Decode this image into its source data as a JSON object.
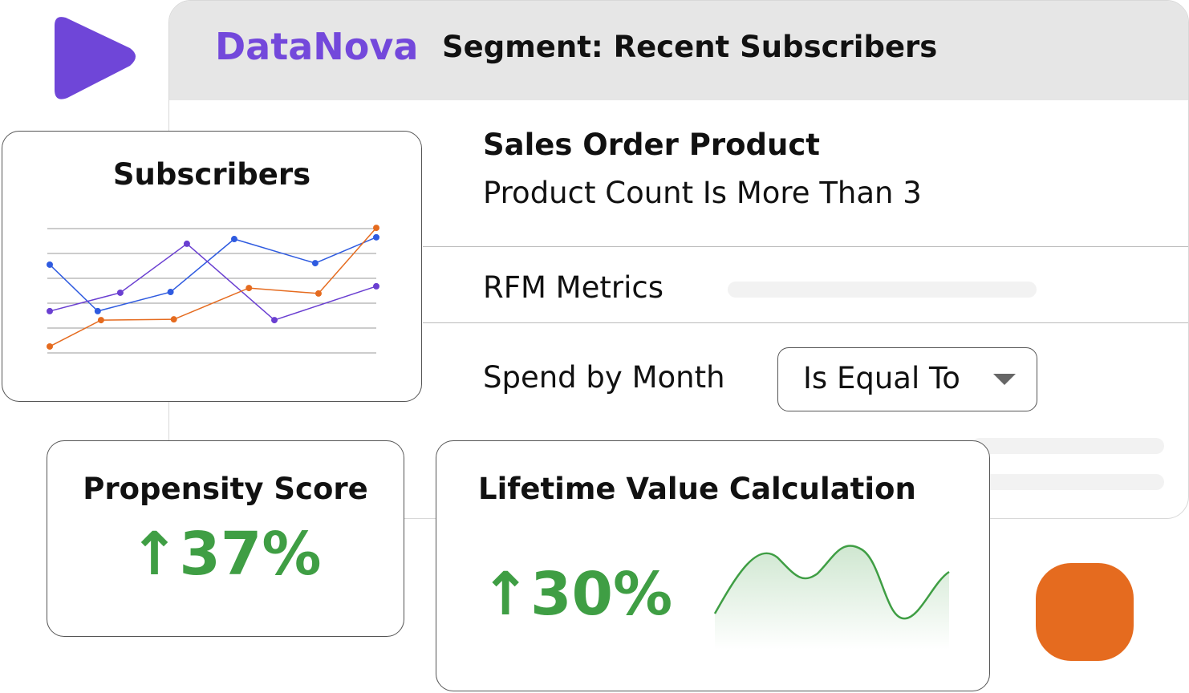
{
  "brand": "DataNova",
  "segment_title": "Segment: Recent Subscribers",
  "conditions": {
    "sales_title": "Sales Order Product",
    "sales_rule": "Product Count Is More Than 3",
    "rfm_label": "RFM Metrics",
    "spend_label": "Spend by Month",
    "spend_operator": "Is Equal To"
  },
  "subscribers_card": {
    "title": "Subscribers",
    "chart": {
      "type": "line",
      "xlim": [
        0,
        100
      ],
      "ylim": [
        0,
        5
      ],
      "series": [
        {
          "color": "#2f5be0",
          "x": [
            0,
            14.7,
            37,
            56.5,
            81.3,
            100
          ],
          "values": [
            3.55,
            1.68,
            2.45,
            4.58,
            3.61,
            4.65
          ]
        },
        {
          "color": "#6a3fd1",
          "x": [
            0,
            21.6,
            42,
            68.8,
            100
          ],
          "values": [
            1.68,
            2.42,
            4.39,
            1.32,
            2.68
          ]
        },
        {
          "color": "#e56b1f",
          "x": [
            0,
            15.7,
            38,
            61,
            82.3,
            100
          ],
          "values": [
            0.26,
            1.32,
            1.35,
            2.61,
            2.39,
            5.03
          ]
        }
      ]
    }
  },
  "propensity_card": {
    "title": "Propensity Score",
    "value": "↑37%"
  },
  "ltv_card": {
    "title": "Lifetime Value Calculation",
    "value": "↑30%"
  }
}
